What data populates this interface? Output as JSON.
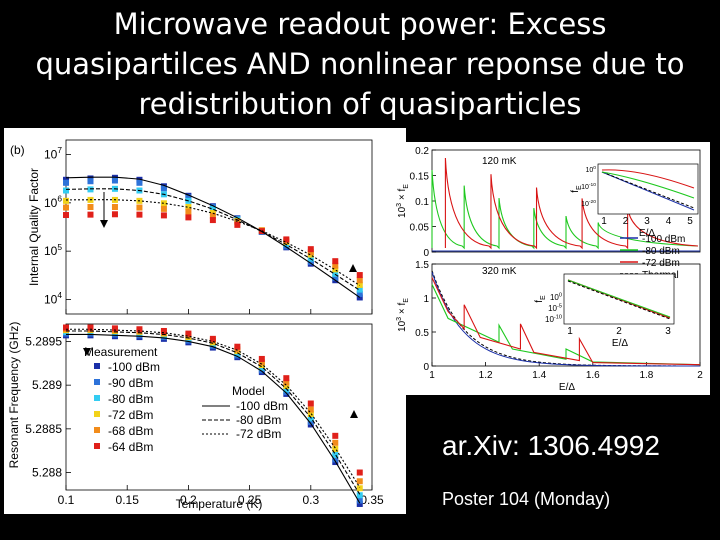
{
  "title": {
    "line1": "Microwave readout power: Excess",
    "line2": "quasipartilces AND nonlinear reponse due to",
    "line3": "redistribution of quasiparticles"
  },
  "reference": "ar.Xiv: 1306.4992",
  "poster": "Poster 104 (Monday)",
  "colors": {
    "s100": "#1a2fa8",
    "s90": "#2d72d9",
    "s80": "#33ccf2",
    "s72": "#f2d21a",
    "s68": "#f28c1a",
    "s64": "#e0201a",
    "green": "#1ec81e",
    "red": "#d81414"
  },
  "chart_data": [
    {
      "type": "scatter",
      "panel_label": "(b)",
      "ylabel": "Internal Quality Factor",
      "yscale": "log",
      "yticks": [
        "10",
        "10",
        "10",
        "10"
      ],
      "yticks_exp": [
        "7",
        "6",
        "5",
        "4"
      ],
      "ylim": [
        5000,
        20000000
      ],
      "xlim": [
        0.1,
        0.35
      ],
      "x": [
        0.1,
        0.12,
        0.14,
        0.16,
        0.18,
        0.2,
        0.22,
        0.24,
        0.26,
        0.28,
        0.3,
        0.32,
        0.34
      ],
      "series": [
        {
          "name": "-100 dBm",
          "values": [
            3000000,
            3200000,
            3300000,
            3000000,
            2200000,
            1400000,
            850000,
            480000,
            250000,
            120000,
            55000,
            25000,
            11000
          ]
        },
        {
          "name": "-90 dBm",
          "values": [
            2600000,
            2800000,
            2900000,
            2600000,
            2000000,
            1300000,
            820000,
            470000,
            250000,
            125000,
            60000,
            28000,
            13000
          ]
        },
        {
          "name": "-80 dBm",
          "values": [
            1800000,
            1900000,
            1950000,
            1800000,
            1500000,
            1100000,
            750000,
            450000,
            260000,
            140000,
            70000,
            34000,
            16000
          ]
        },
        {
          "name": "-72 dBm",
          "values": [
            1100000,
            1150000,
            1150000,
            1100000,
            980000,
            820000,
            620000,
            420000,
            270000,
            155000,
            85000,
            42000,
            20000
          ]
        },
        {
          "name": "-68 dBm",
          "values": [
            800000,
            820000,
            820000,
            800000,
            750000,
            660000,
            540000,
            400000,
            270000,
            165000,
            95000,
            50000,
            25000
          ]
        },
        {
          "name": "-64 dBm",
          "values": [
            560000,
            570000,
            580000,
            570000,
            550000,
            500000,
            440000,
            350000,
            260000,
            175000,
            110000,
            62000,
            32000
          ]
        }
      ],
      "model_lines": [
        {
          "name": "-100 dBm",
          "values": [
            3300000,
            3400000,
            3400000,
            3100000,
            2300000,
            1450000,
            870000,
            490000,
            255000,
            122000,
            56000,
            25000,
            11000
          ]
        },
        {
          "name": "-80 dBm",
          "values": [
            1900000,
            1950000,
            1950000,
            1800000,
            1500000,
            1100000,
            740000,
            445000,
            255000,
            137000,
            69000,
            33000,
            15500
          ]
        },
        {
          "name": "-72 dBm",
          "values": [
            1150000,
            1160000,
            1160000,
            1100000,
            980000,
            810000,
            610000,
            415000,
            265000,
            152000,
            83000,
            41000,
            19500
          ]
        }
      ]
    },
    {
      "type": "scatter",
      "ylabel": "Resonant Frequency (GHz)",
      "xlabel": "Temperature (K)",
      "xticks": [
        "0.1",
        "0.15",
        "0.2",
        "0.25",
        "0.3",
        "0.35"
      ],
      "yticks": [
        "5.2895",
        "5.289",
        "5.2885",
        "5.288"
      ],
      "ylim": [
        5.2878,
        5.2897
      ],
      "xlim": [
        0.1,
        0.35
      ],
      "x": [
        0.1,
        0.12,
        0.14,
        0.16,
        0.18,
        0.2,
        0.22,
        0.24,
        0.26,
        0.28,
        0.3,
        0.32,
        0.34
      ],
      "series": [
        {
          "name": "-100 dBm",
          "values": [
            5.28957,
            5.28957,
            5.28956,
            5.28955,
            5.28953,
            5.28949,
            5.28943,
            5.28932,
            5.28915,
            5.2889,
            5.28855,
            5.28812,
            5.28764
          ]
        },
        {
          "name": "-90 dBm",
          "values": [
            5.28959,
            5.28959,
            5.28958,
            5.28957,
            5.28955,
            5.28951,
            5.28945,
            5.28934,
            5.28917,
            5.28892,
            5.28858,
            5.28815,
            5.28768
          ]
        },
        {
          "name": "-80 dBm",
          "values": [
            5.28961,
            5.28961,
            5.2896,
            5.28959,
            5.28957,
            5.28953,
            5.28947,
            5.28936,
            5.2892,
            5.28895,
            5.28862,
            5.2882,
            5.28774
          ]
        },
        {
          "name": "-72 dBm",
          "values": [
            5.28963,
            5.28963,
            5.28962,
            5.28961,
            5.28959,
            5.28955,
            5.28949,
            5.28939,
            5.28923,
            5.28899,
            5.28867,
            5.28827,
            5.28782
          ]
        },
        {
          "name": "-68 dBm",
          "values": [
            5.28964,
            5.28964,
            5.28963,
            5.28962,
            5.2896,
            5.28957,
            5.28951,
            5.28941,
            5.28926,
            5.28903,
            5.28872,
            5.28834,
            5.2879
          ]
        },
        {
          "name": "-64 dBm",
          "values": [
            5.28966,
            5.28966,
            5.28965,
            5.28964,
            5.28962,
            5.28959,
            5.28953,
            5.28944,
            5.2893,
            5.28908,
            5.28879,
            5.28842,
            5.288
          ]
        }
      ],
      "model_lines": [
        {
          "name": "-100 dBm",
          "values": [
            5.28958,
            5.28958,
            5.28957,
            5.28956,
            5.28954,
            5.2895,
            5.28944,
            5.28933,
            5.28916,
            5.28891,
            5.28856,
            5.28813,
            5.28765
          ]
        },
        {
          "name": "-80 dBm",
          "values": [
            5.28962,
            5.28962,
            5.28961,
            5.2896,
            5.28958,
            5.28954,
            5.28948,
            5.28937,
            5.28921,
            5.28896,
            5.28863,
            5.28821,
            5.28775
          ]
        },
        {
          "name": "-72 dBm",
          "values": [
            5.28964,
            5.28964,
            5.28963,
            5.28962,
            5.2896,
            5.28956,
            5.2895,
            5.2894,
            5.28924,
            5.289,
            5.28868,
            5.28828,
            5.28783
          ]
        }
      ],
      "legend_measurement_title": "Measurement",
      "legend_measurement": [
        "-100 dBm",
        "-90 dBm",
        "-80 dBm",
        "-72 dBm",
        "-68 dBm",
        "-64 dBm"
      ],
      "legend_model_title": "Model",
      "legend_model": [
        "-100 dBm",
        "-80 dBm",
        "-72 dBm"
      ]
    },
    {
      "type": "line",
      "annotation": "120 mK",
      "ylabel_prefix": "10",
      "ylabel_exp": "3",
      "ylabel_main": " × f",
      "ylabel_sub": "E",
      "yticks": [
        "0.2",
        "0.15",
        "0.1",
        "0.05",
        "0"
      ],
      "ylim": [
        0,
        0.2
      ],
      "xlim": [
        1,
        2
      ],
      "legend": [
        "-100 dBm",
        "-80 dBm",
        "-72 dBm",
        "Thermal"
      ],
      "peaks_green": [
        1.0,
        1.12,
        1.25,
        1.38,
        1.5,
        1.62
      ],
      "peaks_red": [
        1.05,
        1.22,
        1.39,
        1.56,
        1.73
      ]
    },
    {
      "type": "line",
      "annotation": "320 mK",
      "ylabel_prefix": "10",
      "ylabel_exp": "3",
      "ylabel_main": " × f",
      "ylabel_sub": "E",
      "yticks": [
        "1.5",
        "1",
        "0.5",
        "0"
      ],
      "ylim": [
        0,
        1.5
      ],
      "xlim": [
        1,
        2
      ],
      "xticks": [
        "1",
        "1.2",
        "1.4",
        "1.6",
        "1.8",
        "2"
      ],
      "xlabel": "E/Δ"
    },
    {
      "type": "line",
      "inset": true,
      "xlabel": "E/Δ",
      "ylabel_main": "f",
      "ylabel_sub": "E",
      "xticks": [
        "1",
        "2",
        "3",
        "4",
        "5"
      ],
      "yticks": [
        "10",
        "10",
        "10"
      ],
      "yticks_exp": [
        "0",
        "-10",
        "-20"
      ]
    },
    {
      "type": "line",
      "inset": true,
      "xlabel": "E/Δ",
      "ylabel_main": "f",
      "ylabel_sub": "E",
      "xticks": [
        "1",
        "2",
        "3"
      ],
      "yticks": [
        "10",
        "10",
        "10"
      ],
      "yticks_exp": [
        "0",
        "-5",
        "-10"
      ]
    }
  ]
}
